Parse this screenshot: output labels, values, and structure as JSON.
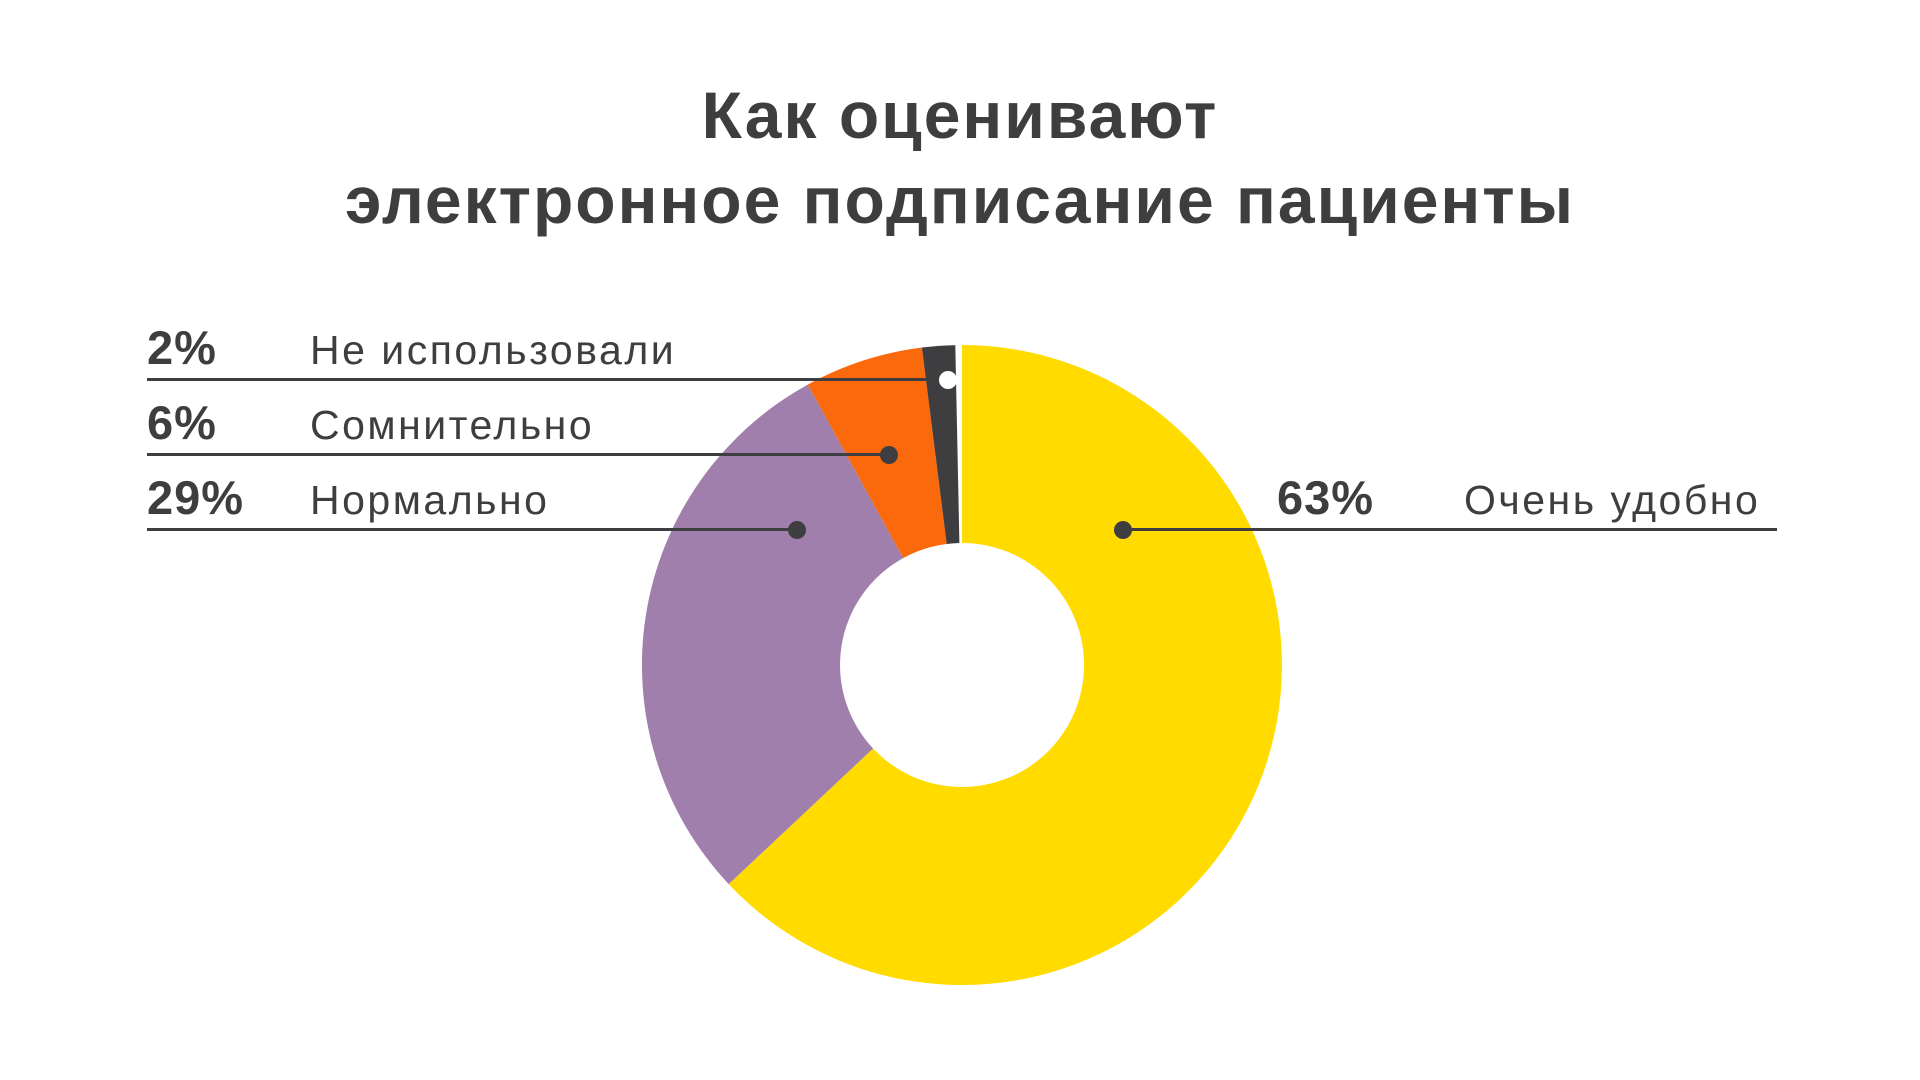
{
  "title": {
    "line1": "Как оценивают",
    "line2": "электронное подписание пациенты"
  },
  "chart_data": {
    "type": "pie",
    "subtype": "donut",
    "title": "Как оценивают электронное подписание пациенты",
    "unit": "%",
    "segments": [
      {
        "label": "Очень удобно",
        "value": 63,
        "color": "#FFDB00"
      },
      {
        "label": "Нормально",
        "value": 29,
        "color": "#A17FAD"
      },
      {
        "label": "Сомнительно",
        "value": 6,
        "color": "#FA690C"
      },
      {
        "label": "Не использовали",
        "value": 2,
        "color": "#3E3E40"
      }
    ],
    "start_angle_deg": 0,
    "direction": "clockwise",
    "inner_radius_ratio": 0.38,
    "gap_after_last_deg": 1.2,
    "legend_position": "callouts"
  },
  "callouts": [
    {
      "pct": "2%",
      "label": "Не использовали",
      "side": "left"
    },
    {
      "pct": "6%",
      "label": "Сомнительно",
      "side": "left"
    },
    {
      "pct": "29%",
      "label": "Нормально",
      "side": "left"
    },
    {
      "pct": "63%",
      "label": "Очень удобно",
      "side": "right"
    }
  ],
  "colors": {
    "background": "#FFFFFF",
    "text": "#3E3E40",
    "leader_line": "#3E3E40"
  }
}
